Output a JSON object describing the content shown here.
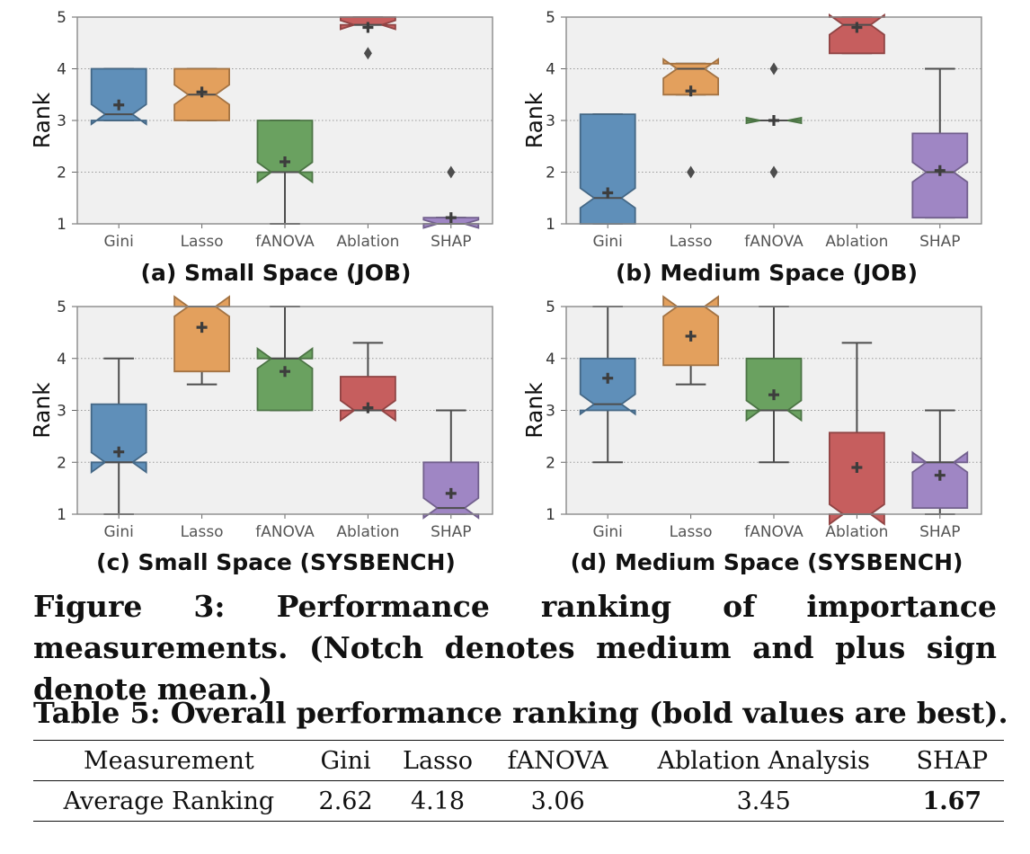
{
  "figure_caption": "Figure 3: Performance ranking of importance measurements. (Notch denotes medium and plus sign denote mean.)",
  "table": {
    "caption": "Table 5: Overall performance ranking (bold values are best).",
    "headers": [
      "Measurement",
      "Gini",
      "Lasso",
      "fANOVA",
      "Ablation Analysis",
      "SHAP"
    ],
    "row": [
      "Average Ranking",
      "2.62",
      "4.18",
      "3.06",
      "3.45",
      "1.67"
    ],
    "best_index": 5
  },
  "chart_data": [
    {
      "type": "box",
      "title": "(a) Small Space (JOB)",
      "ylabel": "Rank",
      "ylim": [
        1,
        5
      ],
      "yticks": [
        "1",
        "2",
        "3",
        "4",
        "5"
      ],
      "grid": true,
      "categories": [
        "Gini",
        "Lasso",
        "fANOVA",
        "Ablation",
        "SHAP"
      ],
      "colors": [
        "#5f8fb9",
        "#e3a05d",
        "#6aa160",
        "#c65e5e",
        "#9f86c4"
      ],
      "boxes": [
        {
          "q1": 3.0,
          "median": 3.12,
          "q3": 4.0,
          "whislo": 3.0,
          "whishi": 4.0,
          "mean": 3.3,
          "outliers": []
        },
        {
          "q1": 3.0,
          "median": 3.5,
          "q3": 4.0,
          "whislo": 3.0,
          "whishi": 4.0,
          "mean": 3.55,
          "outliers": []
        },
        {
          "q1": 2.0,
          "median": 2.0,
          "q3": 3.0,
          "whislo": 1.0,
          "whishi": 3.0,
          "mean": 2.2,
          "outliers": []
        },
        {
          "q1": 4.85,
          "median": 4.85,
          "q3": 5.0,
          "whislo": 4.85,
          "whishi": 5.0,
          "mean": 4.8,
          "outliers": [
            4.3
          ]
        },
        {
          "q1": 1.0,
          "median": 1.0,
          "q3": 1.12,
          "whislo": 1.0,
          "whishi": 1.12,
          "mean": 1.12,
          "outliers": [
            2.0
          ]
        }
      ]
    },
    {
      "type": "box",
      "title": "(b) Medium Space (JOB)",
      "ylabel": "Rank",
      "ylim": [
        1,
        5
      ],
      "yticks": [
        "1",
        "2",
        "3",
        "4",
        "5"
      ],
      "grid": true,
      "categories": [
        "Gini",
        "Lasso",
        "fANOVA",
        "Ablation",
        "SHAP"
      ],
      "colors": [
        "#5f8fb9",
        "#e3a05d",
        "#6aa160",
        "#c65e5e",
        "#9f86c4"
      ],
      "boxes": [
        {
          "q1": 1.0,
          "median": 1.5,
          "q3": 3.12,
          "whislo": 1.0,
          "whishi": 3.12,
          "mean": 1.6,
          "outliers": []
        },
        {
          "q1": 3.5,
          "median": 4.0,
          "q3": 4.1,
          "whislo": 3.5,
          "whishi": 4.1,
          "mean": 3.57,
          "outliers": [
            2.0
          ]
        },
        {
          "q1": 3.0,
          "median": 3.0,
          "q3": 3.0,
          "whislo": 3.0,
          "whishi": 3.0,
          "mean": 3.0,
          "outliers": [
            4.0,
            2.0
          ]
        },
        {
          "q1": 4.3,
          "median": 4.85,
          "q3": 5.0,
          "whislo": 4.3,
          "whishi": 5.0,
          "mean": 4.8,
          "outliers": []
        },
        {
          "q1": 1.12,
          "median": 2.0,
          "q3": 2.75,
          "whislo": 1.12,
          "whishi": 4.0,
          "mean": 2.03,
          "outliers": []
        }
      ]
    },
    {
      "type": "box",
      "title": "(c) Small Space (SYSBENCH)",
      "ylabel": "Rank",
      "ylim": [
        1,
        5
      ],
      "yticks": [
        "1",
        "2",
        "3",
        "4",
        "5"
      ],
      "grid": true,
      "categories": [
        "Gini",
        "Lasso",
        "fANOVA",
        "Ablation",
        "SHAP"
      ],
      "colors": [
        "#5f8fb9",
        "#e3a05d",
        "#6aa160",
        "#c65e5e",
        "#9f86c4"
      ],
      "boxes": [
        {
          "q1": 2.0,
          "median": 2.0,
          "q3": 3.12,
          "whislo": 1.0,
          "whishi": 4.0,
          "mean": 2.2,
          "outliers": []
        },
        {
          "q1": 3.75,
          "median": 5.0,
          "q3": 5.0,
          "whislo": 3.5,
          "whishi": 5.0,
          "mean": 4.6,
          "outliers": []
        },
        {
          "q1": 3.0,
          "median": 4.0,
          "q3": 4.0,
          "whislo": 3.0,
          "whishi": 5.0,
          "mean": 3.75,
          "outliers": []
        },
        {
          "q1": 3.0,
          "median": 3.0,
          "q3": 3.65,
          "whislo": 3.0,
          "whishi": 4.3,
          "mean": 3.05,
          "outliers": []
        },
        {
          "q1": 1.0,
          "median": 1.12,
          "q3": 2.0,
          "whislo": 1.0,
          "whishi": 3.0,
          "mean": 1.4,
          "outliers": []
        }
      ]
    },
    {
      "type": "box",
      "title": "(d) Medium Space (SYSBENCH)",
      "ylabel": "Rank",
      "ylim": [
        1,
        5
      ],
      "yticks": [
        "1",
        "2",
        "3",
        "4",
        "5"
      ],
      "grid": true,
      "categories": [
        "Gini",
        "Lasso",
        "fANOVA",
        "Ablation",
        "SHAP"
      ],
      "colors": [
        "#5f8fb9",
        "#e3a05d",
        "#6aa160",
        "#c65e5e",
        "#9f86c4"
      ],
      "boxes": [
        {
          "q1": 3.0,
          "median": 3.12,
          "q3": 4.0,
          "whislo": 2.0,
          "whishi": 5.0,
          "mean": 3.62,
          "outliers": []
        },
        {
          "q1": 3.87,
          "median": 5.0,
          "q3": 5.0,
          "whislo": 3.5,
          "whishi": 5.0,
          "mean": 4.43,
          "outliers": []
        },
        {
          "q1": 3.0,
          "median": 3.0,
          "q3": 4.0,
          "whislo": 2.0,
          "whishi": 5.0,
          "mean": 3.3,
          "outliers": []
        },
        {
          "q1": 1.0,
          "median": 1.0,
          "q3": 2.57,
          "whislo": 1.0,
          "whishi": 4.3,
          "mean": 1.9,
          "outliers": []
        },
        {
          "q1": 1.12,
          "median": 2.0,
          "q3": 2.0,
          "whislo": 1.0,
          "whishi": 3.0,
          "mean": 1.75,
          "outliers": []
        }
      ]
    }
  ]
}
